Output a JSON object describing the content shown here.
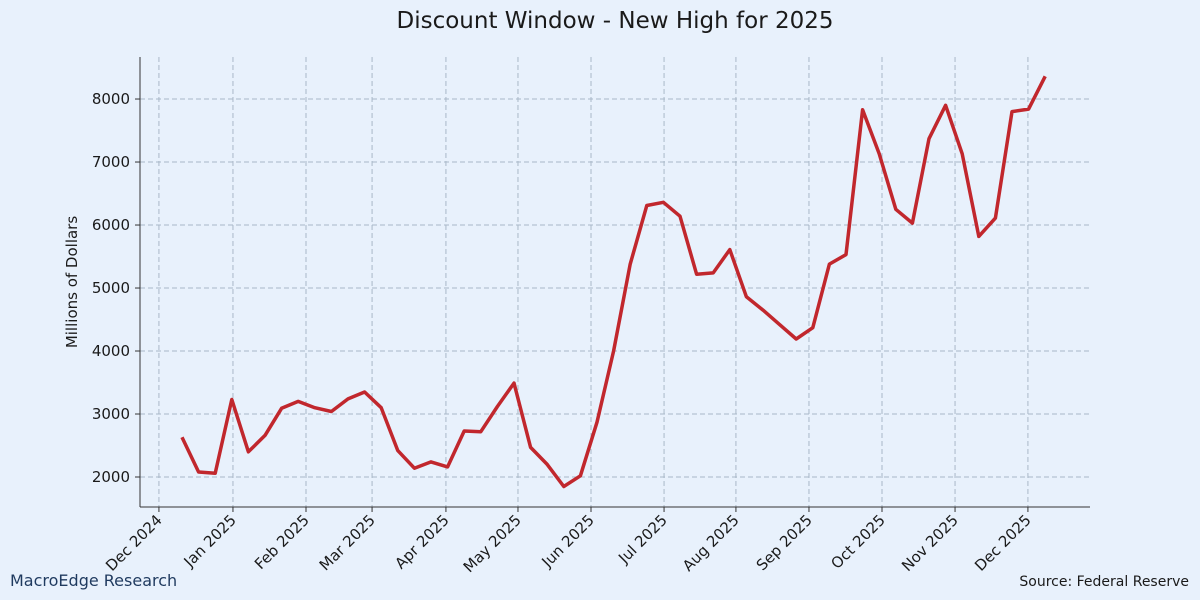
{
  "chart_data": {
    "type": "line",
    "title": "Discount Window - New High for 2025",
    "y_label": "Millions of Dollars",
    "footer_left": "MacroEdge Research",
    "footer_right": "Source: Federal Reserve",
    "categories": [
      null,
      null,
      null,
      null,
      null,
      null,
      null,
      null,
      null,
      null,
      null,
      null,
      null,
      null,
      null,
      null,
      null,
      null,
      null,
      null,
      null,
      null,
      null,
      null,
      null,
      null,
      null,
      null,
      null,
      null,
      null,
      null,
      null,
      null,
      null,
      null,
      null,
      null,
      null,
      null,
      null,
      null,
      null,
      null,
      null,
      null,
      null,
      null,
      null,
      null,
      null,
      null,
      null
    ],
    "values": [
      2630,
      2080,
      2060,
      3230,
      2400,
      2660,
      3090,
      3200,
      3100,
      3040,
      3240,
      3350,
      3100,
      2420,
      2140,
      2240,
      2160,
      2730,
      2720,
      3120,
      3490,
      2470,
      2200,
      1850,
      2020,
      2870,
      4000,
      5380,
      6310,
      6360,
      6140,
      5220,
      5240,
      5610,
      4860,
      4650,
      4420,
      4190,
      4370,
      5380,
      5530,
      7830,
      7130,
      6250,
      6030,
      7370,
      7900,
      7130,
      5820,
      6110,
      7800,
      7840,
      8360
    ],
    "color": "#c1272d",
    "xlim": [
      -2.53,
      54.7
    ],
    "xticks": [
      {
        "value": -1.39,
        "label": "Dec 2024"
      },
      {
        "value": 3.07,
        "label": "Jan 2025"
      },
      {
        "value": 7.47,
        "label": "Feb 2025"
      },
      {
        "value": 11.45,
        "label": "Mar 2025"
      },
      {
        "value": 15.9,
        "label": "Apr 2025"
      },
      {
        "value": 20.24,
        "label": "May 2025"
      },
      {
        "value": 24.64,
        "label": "Jun 2025"
      },
      {
        "value": 29.04,
        "label": "Jul 2025"
      },
      {
        "value": 33.37,
        "label": "Aug 2025"
      },
      {
        "value": 37.77,
        "label": "Sep 2025"
      },
      {
        "value": 42.17,
        "label": "Oct 2025"
      },
      {
        "value": 46.57,
        "label": "Nov 2025"
      },
      {
        "value": 50.96,
        "label": "Dec 2025"
      }
    ],
    "ylim": [
      1524,
      8667
    ],
    "yticks": [
      2000,
      3000,
      4000,
      5000,
      6000,
      7000,
      8000
    ],
    "grid": true
  }
}
